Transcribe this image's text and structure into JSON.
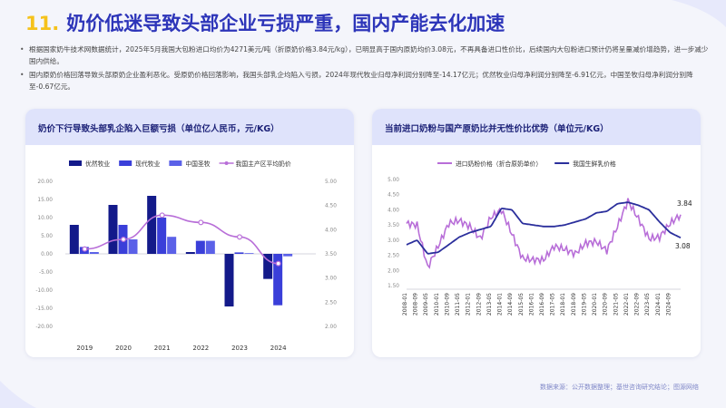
{
  "header": {
    "number": "11.",
    "title": "奶价低迷导致头部企业亏损严重，国内产能去化加速"
  },
  "bullets": [
    "根据国家奶牛技术网数据统计，2025年5月我国大包粉进口均价为4271美元/吨（折原奶价格3.84元/kg），已明显高于国内原奶均价3.08元，不再具备进口性价比，后续国内大包粉进口预计仍将呈量减价增趋势，进一步减少国内供给。",
    "国内原奶价格回落导致头部原奶企业盈利恶化。受原奶价格回落影响，我国头部乳企均陷入亏损，2024年现代牧业归母净利润分别降至-14.17亿元；优然牧业归母净利润分别降至-6.91亿元，中国圣牧归母净利润分别降至-0.67亿元。"
  ],
  "left_card": {
    "title": "奶价下行导致头部乳企陷入巨额亏损（单位亿人民币，元/KG）"
  },
  "right_card": {
    "title": "当前进口奶粉与国产原奶比并无性价比优势（单位元/KG）"
  },
  "source": "数据来源：公开数据整理；基世咨询研究结论；图源网络",
  "colors": {
    "dark_blue": "#131a8a",
    "mid_blue": "#3a3fd9",
    "light_blue": "#5b61e8",
    "purple": "#b86ed8",
    "navy_line": "#2b2f9c"
  },
  "chart_data": [
    {
      "type": "bar",
      "title": "奶价下行导致头部乳企陷入巨额亏损（单位亿人民币，元/KG）",
      "categories": [
        "2019",
        "2020",
        "2021",
        "2022",
        "2023",
        "2024"
      ],
      "series": [
        {
          "name": "优然牧业",
          "type": "bar",
          "axis": "left",
          "color": "#131a8a",
          "values": [
            8.0,
            13.5,
            16.0,
            0.5,
            -14.5,
            -6.91
          ]
        },
        {
          "name": "现代牧业",
          "type": "bar",
          "axis": "left",
          "color": "#3a3fd9",
          "values": [
            1.9,
            8.0,
            10.0,
            3.6,
            0.4,
            -14.17
          ]
        },
        {
          "name": "中国圣牧",
          "type": "bar",
          "axis": "left",
          "color": "#5b61e8",
          "values": [
            0.5,
            4.0,
            4.7,
            3.6,
            0.2,
            -0.67
          ]
        },
        {
          "name": "我国主产区平均奶价",
          "type": "line",
          "axis": "right",
          "color": "#b86ed8",
          "values": [
            3.6,
            3.8,
            4.3,
            4.15,
            3.85,
            3.3
          ]
        }
      ],
      "ylim": [
        -20,
        20
      ],
      "yticks": [
        "20.00",
        "15.00",
        "10.00",
        "5.00",
        "0.00",
        "-5.00",
        "-10.00",
        "-15.00",
        "-20.00"
      ],
      "y2lim": [
        2.0,
        5.0
      ],
      "y2ticks": [
        "5.00",
        "4.50",
        "4.00",
        "3.50",
        "3.00",
        "2.50",
        "2.00"
      ],
      "legend": "top"
    },
    {
      "type": "line",
      "title": "当前进口奶粉与国产原奶比并无性价比优势（单位元/KG）",
      "x": [
        "2008-01",
        "2008-09",
        "2009-05",
        "2010-01",
        "2010-09",
        "2011-05",
        "2012-01",
        "2012-09",
        "2013-05",
        "2014-01",
        "2014-09",
        "2015-05",
        "2016-01",
        "2016-09",
        "2017-05",
        "2018-01",
        "2018-09",
        "2019-05",
        "2020-01",
        "2020-09",
        "2021-05",
        "2022-01",
        "2022-09",
        "2023-05",
        "2024-01",
        "2024-09",
        "2025-05"
      ],
      "series": [
        {
          "name": "进口奶粉价格（折合原奶单价）",
          "color": "#b86ed8",
          "values": [
            3.55,
            3.5,
            2.1,
            2.8,
            3.55,
            3.65,
            3.45,
            3.05,
            3.75,
            4.0,
            3.2,
            2.4,
            2.35,
            2.35,
            2.8,
            2.7,
            2.55,
            2.9,
            2.95,
            2.65,
            3.45,
            4.3,
            3.7,
            3.05,
            3.1,
            3.55,
            3.84
          ]
        },
        {
          "name": "我国生鲜乳价格",
          "color": "#2b2f9c",
          "values": [
            2.85,
            3.0,
            2.55,
            2.6,
            2.85,
            3.1,
            3.25,
            3.35,
            3.45,
            4.05,
            4.0,
            3.55,
            3.5,
            3.45,
            3.45,
            3.5,
            3.6,
            3.7,
            3.9,
            3.95,
            4.2,
            4.25,
            4.15,
            4.0,
            3.6,
            3.25,
            3.08
          ]
        }
      ],
      "annotations": [
        "3.84",
        "3.08"
      ],
      "ylim": [
        1.5,
        5.0
      ],
      "yticks": [
        "5.00",
        "4.50",
        "4.00",
        "3.50",
        "3.00",
        "2.50",
        "2.00",
        "1.50"
      ],
      "xticks": [
        "2008-01",
        "2008-09",
        "2009-05",
        "2010-01",
        "2010-09",
        "2011-05",
        "2012-01",
        "2012-09",
        "2013-05",
        "2014-01",
        "2014-09",
        "2015-05",
        "2016-01",
        "2016-09",
        "2017-05",
        "2018-01",
        "2018-09",
        "2019-05",
        "2020-01",
        "2020-09",
        "2021-05",
        "2022-01",
        "2022-09",
        "2023-05",
        "2024-01",
        "2024-09"
      ],
      "legend": "top"
    }
  ]
}
